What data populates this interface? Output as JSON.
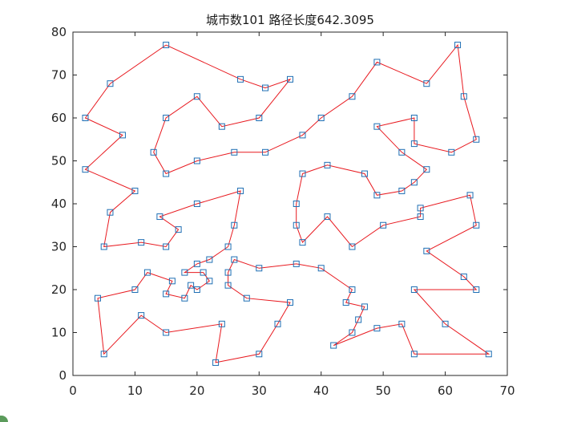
{
  "chart_data": {
    "type": "line",
    "title": "城市数101   路径长度642.3095",
    "xlabel": "",
    "ylabel": "",
    "xlim": [
      0,
      70
    ],
    "ylim": [
      0,
      80
    ],
    "xticks": [
      0,
      10,
      20,
      30,
      40,
      50,
      60,
      70
    ],
    "yticks": [
      0,
      10,
      20,
      30,
      40,
      50,
      60,
      70,
      80
    ],
    "grid": false,
    "legend": "none",
    "colors": {
      "path": "#e8191f",
      "marker": "#1f6fb4",
      "axes": "#262626"
    },
    "route": [
      [
        15,
        77
      ],
      [
        27,
        69
      ],
      [
        31,
        67
      ],
      [
        35,
        69
      ],
      [
        30,
        60
      ],
      [
        24,
        58
      ],
      [
        20,
        65
      ],
      [
        15,
        60
      ],
      [
        13,
        52
      ],
      [
        15,
        47
      ],
      [
        20,
        50
      ],
      [
        26,
        52
      ],
      [
        31,
        52
      ],
      [
        37,
        56
      ],
      [
        40,
        60
      ],
      [
        45,
        65
      ],
      [
        49,
        73
      ],
      [
        57,
        68
      ],
      [
        62,
        77
      ],
      [
        63,
        65
      ],
      [
        65,
        55
      ],
      [
        61,
        52
      ],
      [
        55,
        54
      ],
      [
        55,
        60
      ],
      [
        49,
        58
      ],
      [
        53,
        52
      ],
      [
        57,
        48
      ],
      [
        55,
        45
      ],
      [
        53,
        43
      ],
      [
        49,
        42
      ],
      [
        47,
        47
      ],
      [
        41,
        49
      ],
      [
        37,
        47
      ],
      [
        36,
        40
      ],
      [
        36,
        35
      ],
      [
        37,
        31
      ],
      [
        41,
        37
      ],
      [
        45,
        30
      ],
      [
        50,
        35
      ],
      [
        56,
        37
      ],
      [
        56,
        39
      ],
      [
        64,
        42
      ],
      [
        65,
        35
      ],
      [
        57,
        29
      ],
      [
        63,
        23
      ],
      [
        65,
        20
      ],
      [
        55,
        20
      ],
      [
        60,
        12
      ],
      [
        67,
        5
      ],
      [
        55,
        5
      ],
      [
        53,
        12
      ],
      [
        49,
        11
      ],
      [
        42,
        7
      ],
      [
        45,
        10
      ],
      [
        46,
        13
      ],
      [
        47,
        16
      ],
      [
        44,
        17
      ],
      [
        45,
        20
      ],
      [
        40,
        25
      ],
      [
        36,
        26
      ],
      [
        30,
        25
      ],
      [
        26,
        27
      ],
      [
        25,
        24
      ],
      [
        25,
        21
      ],
      [
        28,
        18
      ],
      [
        35,
        17
      ],
      [
        33,
        12
      ],
      [
        30,
        5
      ],
      [
        23,
        3
      ],
      [
        24,
        12
      ],
      [
        15,
        10
      ],
      [
        11,
        14
      ],
      [
        5,
        5
      ],
      [
        4,
        18
      ],
      [
        10,
        20
      ],
      [
        12,
        24
      ],
      [
        16,
        22
      ],
      [
        15,
        19
      ],
      [
        18,
        18
      ],
      [
        19,
        21
      ],
      [
        20,
        20
      ],
      [
        22,
        22
      ],
      [
        21,
        24
      ],
      [
        18,
        24
      ],
      [
        20,
        26
      ],
      [
        22,
        27
      ],
      [
        25,
        30
      ],
      [
        26,
        35
      ],
      [
        27,
        43
      ],
      [
        20,
        40
      ],
      [
        14,
        37
      ],
      [
        17,
        34
      ],
      [
        15,
        30
      ],
      [
        11,
        31
      ],
      [
        5,
        30
      ],
      [
        6,
        38
      ],
      [
        10,
        43
      ],
      [
        2,
        48
      ],
      [
        8,
        56
      ],
      [
        2,
        60
      ],
      [
        6,
        68
      ],
      [
        15,
        77
      ]
    ]
  }
}
